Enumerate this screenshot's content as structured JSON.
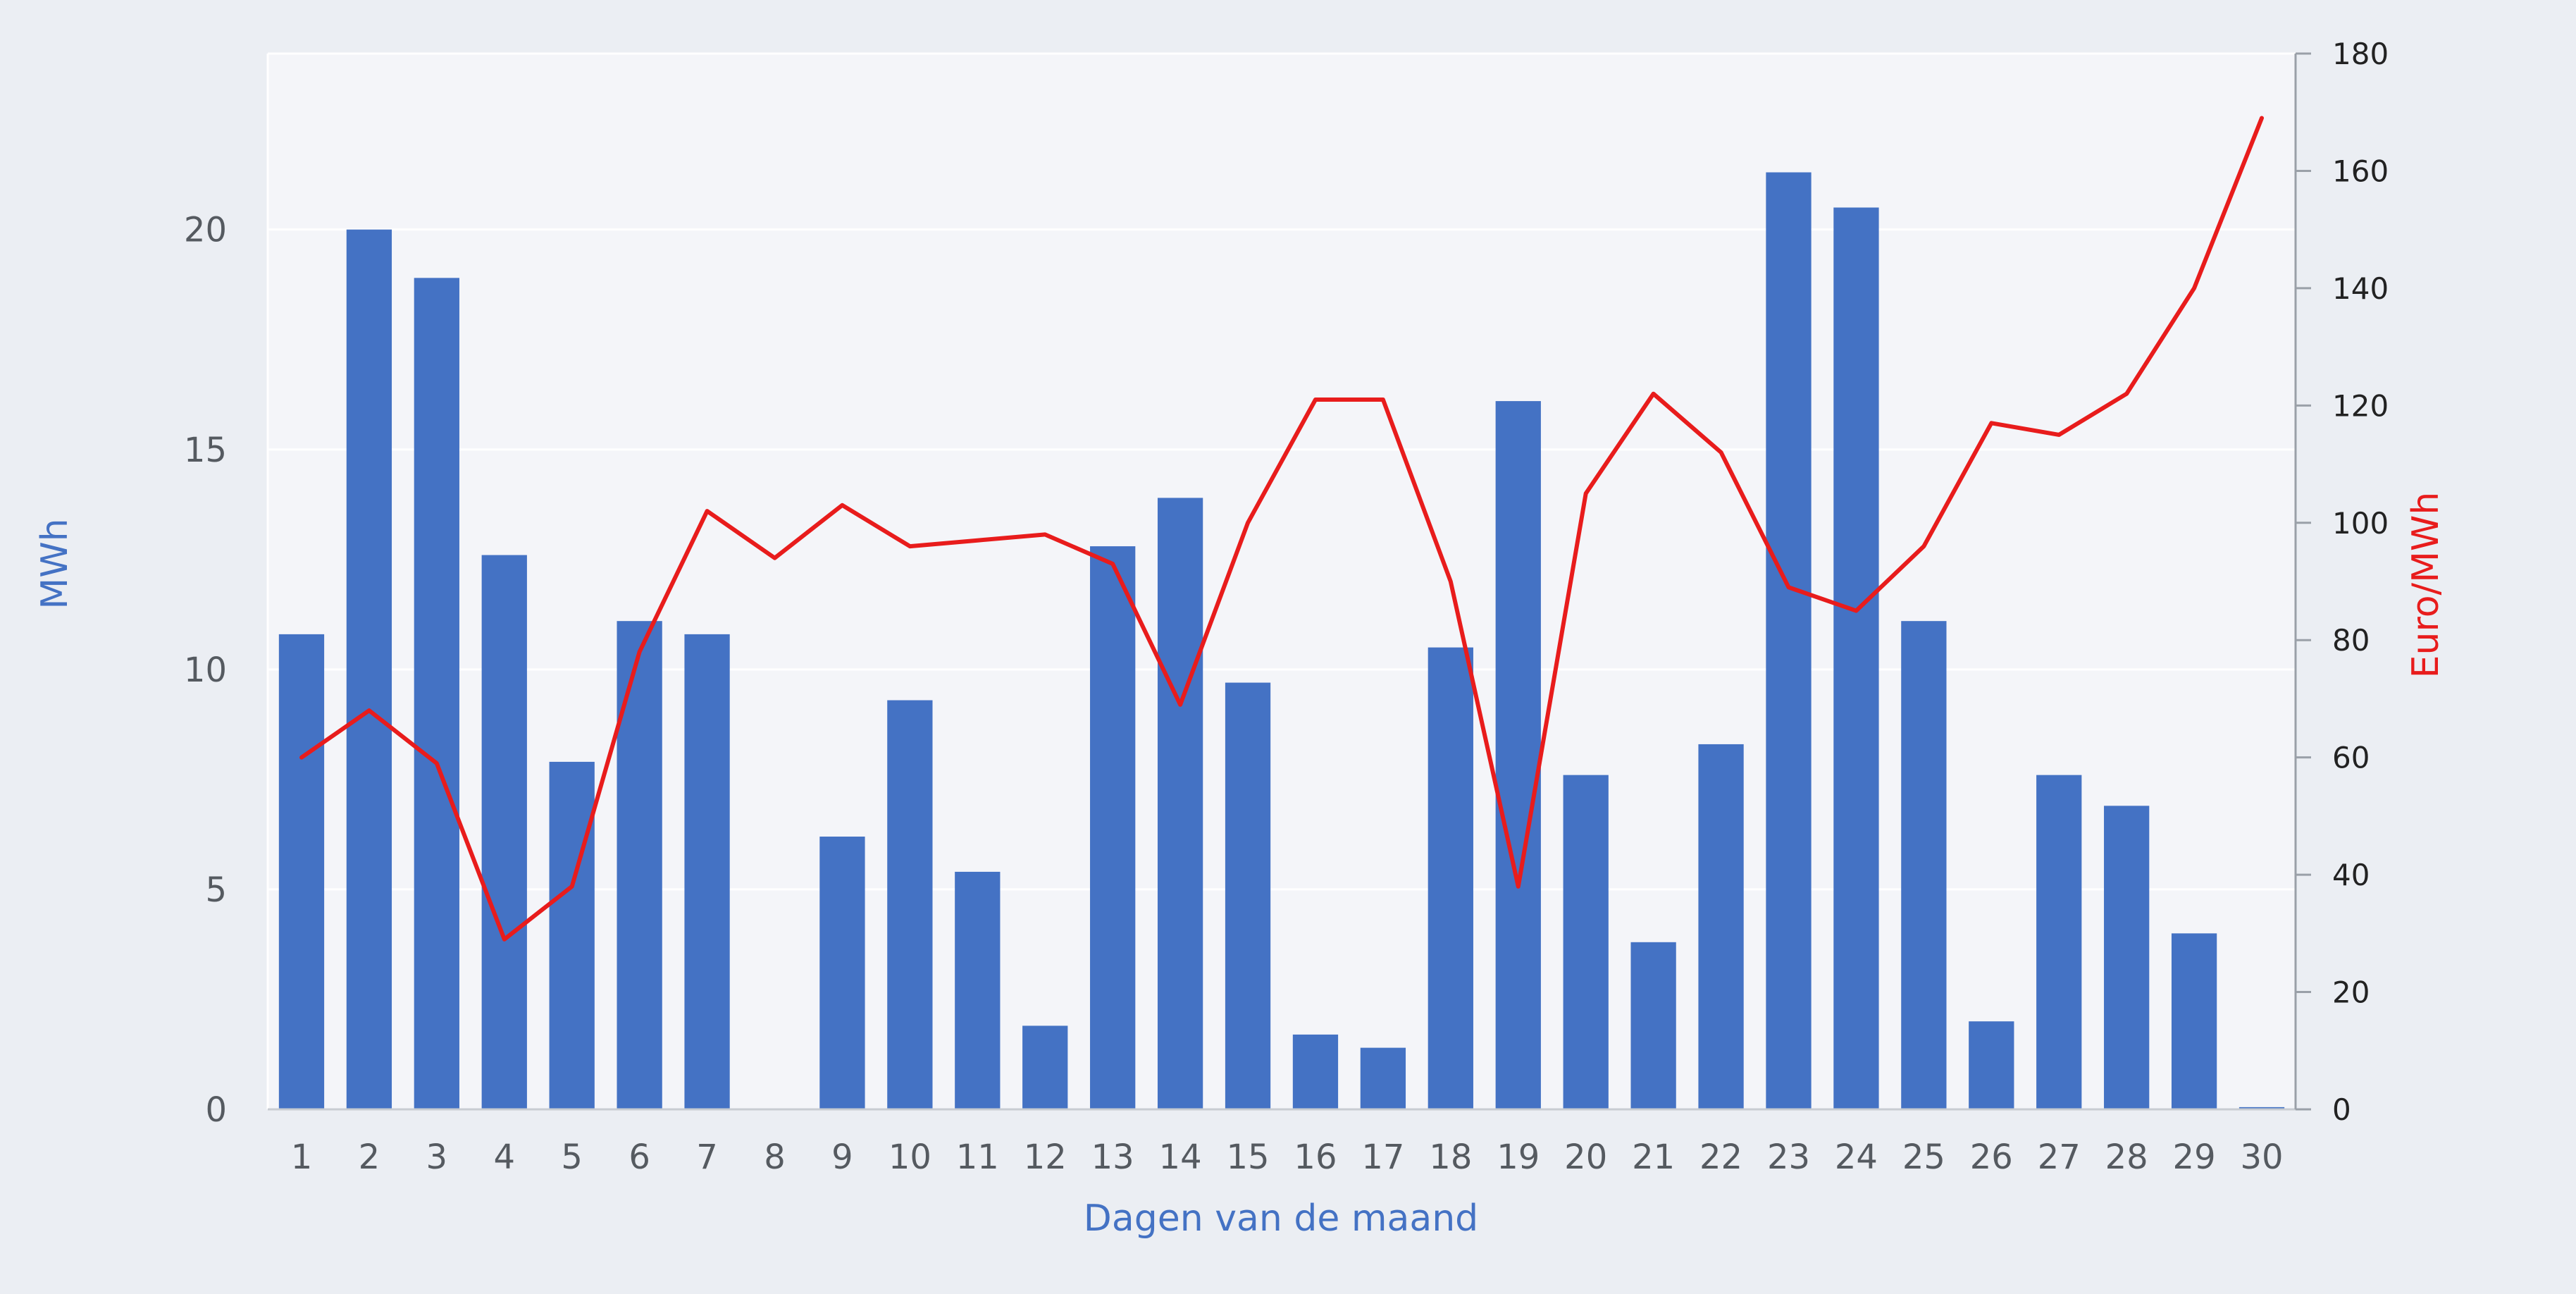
{
  "chart_data": {
    "type": "bar+line",
    "categories": [
      "1",
      "2",
      "3",
      "4",
      "5",
      "6",
      "7",
      "8",
      "9",
      "10",
      "11",
      "12",
      "13",
      "14",
      "15",
      "16",
      "17",
      "18",
      "19",
      "20",
      "21",
      "22",
      "23",
      "24",
      "25",
      "26",
      "27",
      "28",
      "29",
      "30"
    ],
    "xlabel": "Dagen van de maand",
    "grid": true,
    "series": [
      {
        "type": "bar",
        "axis": "left",
        "color": "#4472c4",
        "values": [
          10.8,
          20.0,
          18.9,
          12.6,
          7.9,
          11.1,
          10.8,
          0,
          6.2,
          9.3,
          5.4,
          1.9,
          12.8,
          13.9,
          9.7,
          1.7,
          1.4,
          10.5,
          16.1,
          7.6,
          3.8,
          8.3,
          21.3,
          20.5,
          11.1,
          2.0,
          7.6,
          6.9,
          4.0,
          0.05
        ]
      },
      {
        "type": "line",
        "axis": "right",
        "color": "#e81c1c",
        "values": [
          60,
          68,
          59,
          29,
          38,
          78,
          102,
          94,
          103,
          96,
          97,
          98,
          93,
          69,
          100,
          121,
          121,
          90,
          38,
          105,
          122,
          112,
          89,
          85,
          96,
          117,
          115,
          122,
          140,
          169
        ]
      }
    ],
    "y_left": {
      "label": "MWh",
      "label_color": "#4472c4",
      "ylim": [
        0,
        24
      ],
      "ticks": [
        "0",
        "5",
        "10",
        "15",
        "20"
      ],
      "tick_values": [
        0,
        5,
        10,
        15,
        20
      ]
    },
    "y_right": {
      "label": "Euro/MWh",
      "label_color": "#e81c1c",
      "ylim": [
        0,
        180
      ],
      "ticks": [
        "0",
        "20",
        "40",
        "60",
        "80",
        "100",
        "120",
        "140",
        "160",
        "180"
      ],
      "tick_values": [
        0,
        20,
        40,
        60,
        80,
        100,
        120,
        140,
        160,
        180
      ]
    },
    "colors": {
      "page_background": "#ebeef3",
      "plot_background": "#f4f5f9",
      "grid": "#ffffff",
      "x_label": "#4472c4"
    }
  }
}
